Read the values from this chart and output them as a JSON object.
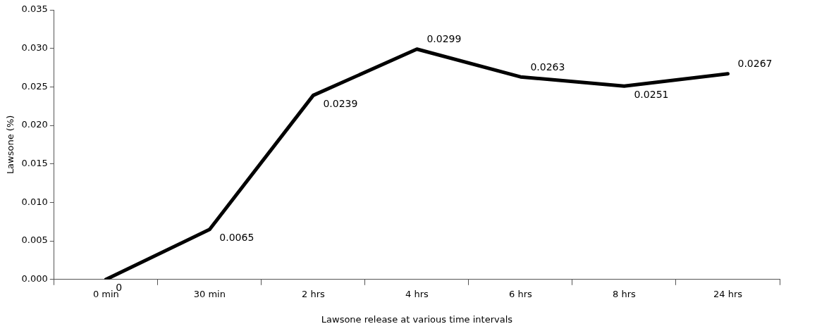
{
  "chart_data": {
    "type": "line",
    "xlabel": "Lawsone release at various time intervals",
    "ylabel": "Lawsone (%)",
    "categories": [
      "0 min",
      "30 min",
      "2 hrs",
      "4 hrs",
      "6 hrs",
      "8 hrs",
      "24 hrs"
    ],
    "series": [
      {
        "color": "#000000",
        "values": [
          0,
          0.0065,
          0.0239,
          0.0299,
          0.0263,
          0.0251,
          0.0267
        ]
      }
    ],
    "ylim": [
      0,
      0.035
    ],
    "yticks": [
      {
        "value": 0,
        "label": "0.000"
      },
      {
        "value": 0.005,
        "label": "0.005"
      },
      {
        "value": 0.01,
        "label": "0.010"
      },
      {
        "value": 0.015,
        "label": "0.015"
      },
      {
        "value": 0.02,
        "label": "0.020"
      },
      {
        "value": 0.025,
        "label": "0.025"
      },
      {
        "value": 0.03,
        "label": "0.030"
      },
      {
        "value": 0.035,
        "label": "0.035"
      }
    ],
    "data_labels": true,
    "grid": false,
    "legend": false,
    "marker": "none",
    "line_style": "solid"
  }
}
